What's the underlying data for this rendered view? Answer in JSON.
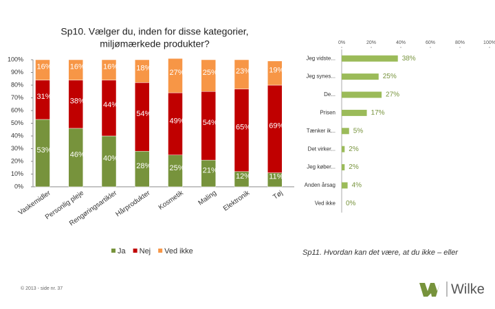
{
  "chart_data": [
    {
      "type": "stacked_bar",
      "title": [
        "Sp10. Vælger du, inden for disse kategorier,",
        "miljømærkede produkter?"
      ],
      "categories": [
        "Vaskemidler",
        "Personlig pleje",
        "Rengøringsartikler",
        "Hårprodukter",
        "Kosmetik",
        "Maling",
        "Elektronik",
        "Tøj"
      ],
      "series": [
        {
          "name": "Ja",
          "color": "#77933c",
          "values": [
            53,
            46,
            40,
            28,
            25,
            21,
            12,
            11
          ],
          "value_labels": [
            "53%",
            "46%",
            "40%",
            "28%",
            "25%",
            "21%",
            "12%",
            "11%"
          ]
        },
        {
          "name": "Nej",
          "color": "#c00000",
          "values": [
            31,
            38,
            44,
            54,
            49,
            54,
            65,
            69
          ],
          "value_labels": [
            "31%",
            "38%",
            "44%",
            "54%",
            "49%",
            "54%",
            "65%",
            "69%"
          ]
        },
        {
          "name": "Ved ikke",
          "color": "#f79646",
          "values": [
            16,
            16,
            16,
            18,
            27,
            25,
            23,
            19
          ],
          "value_labels": [
            "16%",
            "16%",
            "16%",
            "18%",
            "27%",
            "25%",
            "23%",
            "19%"
          ]
        }
      ],
      "ylim": [
        0,
        100
      ],
      "yticks": [
        {
          "value": 0,
          "label": "0%"
        },
        {
          "value": 10,
          "label": "10%"
        },
        {
          "value": 20,
          "label": "20%"
        },
        {
          "value": 30,
          "label": "30%"
        },
        {
          "value": 40,
          "label": "40%"
        },
        {
          "value": 50,
          "label": "50%"
        },
        {
          "value": 60,
          "label": "60%"
        },
        {
          "value": 70,
          "label": "70%"
        },
        {
          "value": 80,
          "label": "80%"
        },
        {
          "value": 90,
          "label": "90%"
        },
        {
          "value": 100,
          "label": "100%"
        }
      ],
      "legend": "bottom"
    },
    {
      "type": "horizontal_bar",
      "title": "Sp11. Hvordan kan det være, at du ikke – eller",
      "categories": [
        "Jeg vidste...",
        "Jeg synes...",
        "De...",
        "Prisen",
        "Tænker ik...",
        "Det virker...",
        "Jeg køber...",
        "Anden årsag",
        "Ved ikke"
      ],
      "values": [
        38,
        25,
        27,
        17,
        5,
        2,
        2,
        4,
        0
      ],
      "value_labels": [
        "38%",
        "25%",
        "27%",
        "17%",
        "5%",
        "2%",
        "2%",
        "4%",
        "0%"
      ],
      "color": "#9bbb59",
      "xlim": [
        0,
        100
      ],
      "xticks": [
        {
          "value": 0,
          "label": "0%"
        },
        {
          "value": 20,
          "label": "20%"
        },
        {
          "value": 40,
          "label": "40%"
        },
        {
          "value": 60,
          "label": "60%"
        },
        {
          "value": 80,
          "label": "80%"
        },
        {
          "value": 100,
          "label": "100%"
        }
      ]
    }
  ],
  "footer": "© 2013 - side nr. 37",
  "logo": "Wilke"
}
